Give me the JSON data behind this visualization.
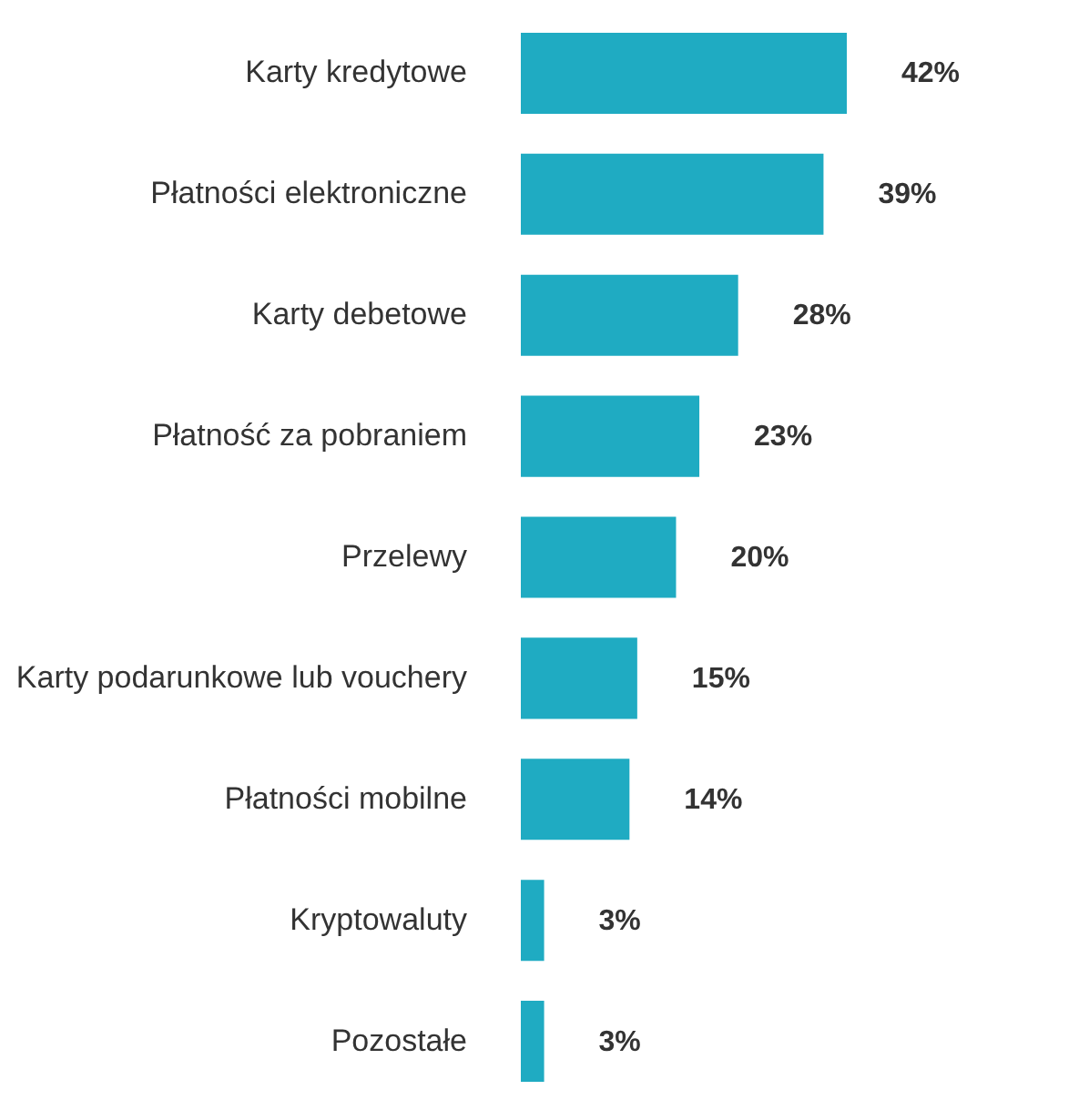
{
  "chart_data": {
    "type": "bar",
    "orientation": "horizontal",
    "categories": [
      "Karty kredytowe",
      "Płatności elektroniczne",
      "Karty debetowe",
      "Płatność za pobraniem",
      "Przelewy",
      "Karty podarunkowe lub vouchery",
      "Płatności mobilne",
      "Kryptowaluty",
      "Pozostałe"
    ],
    "values": [
      42,
      39,
      28,
      23,
      20,
      15,
      14,
      3,
      3
    ],
    "value_labels": [
      "42%",
      "39%",
      "28%",
      "23%",
      "20%",
      "15%",
      "14%",
      "3%",
      "3%"
    ],
    "color": "#1fabc2"
  }
}
